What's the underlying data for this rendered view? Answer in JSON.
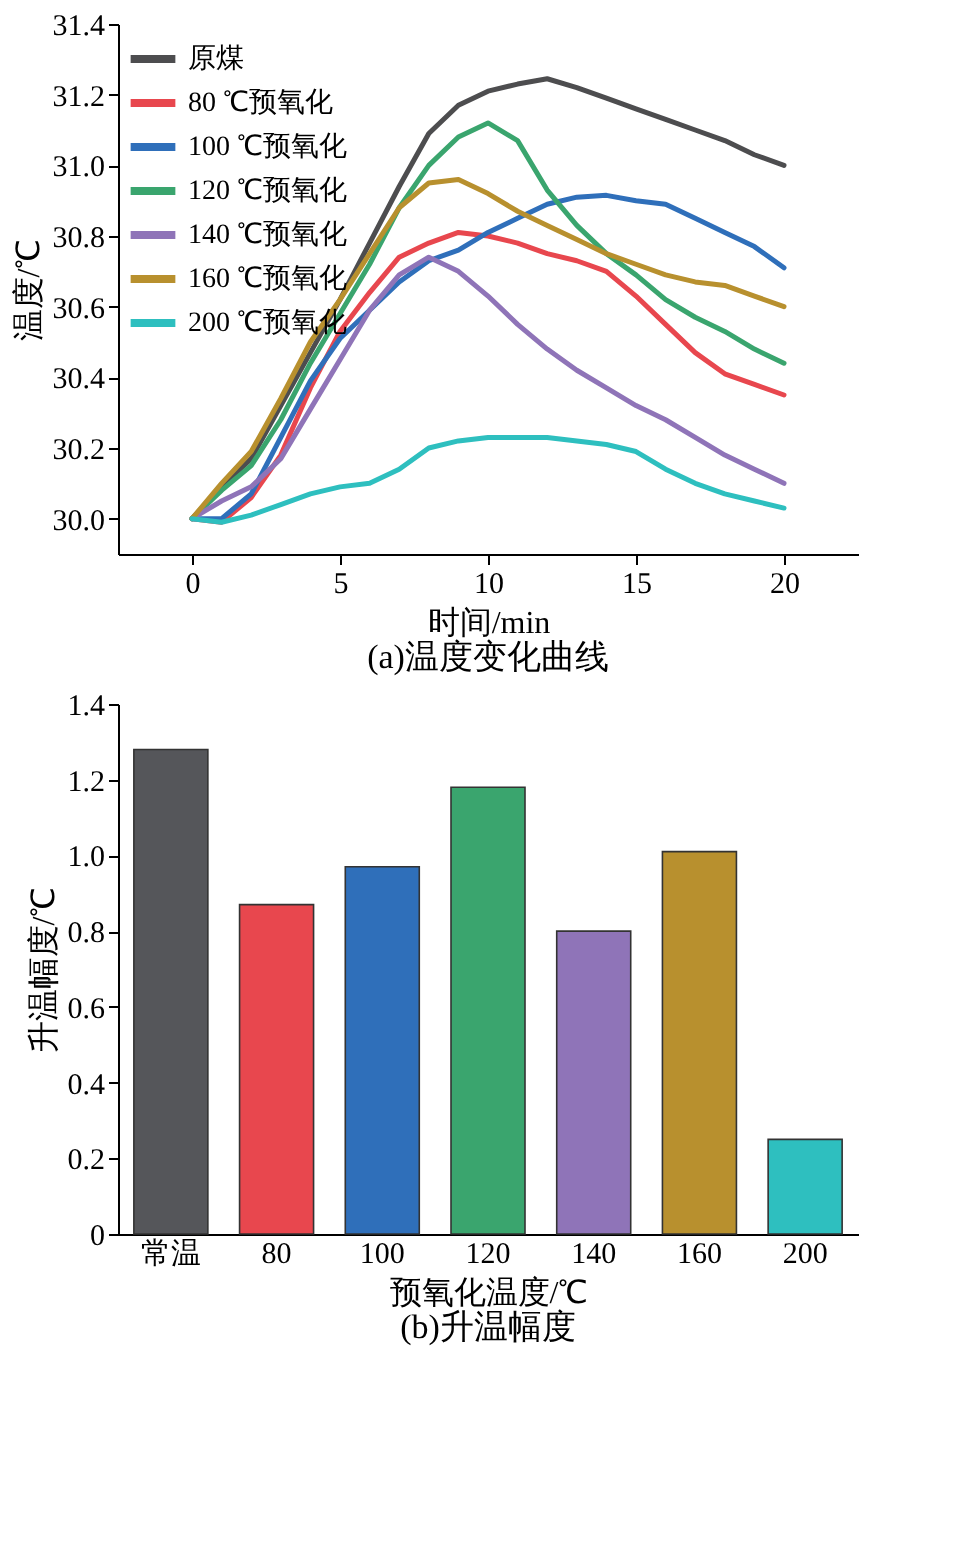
{
  "chart_data": [
    {
      "type": "line",
      "title": "(a)温度变化曲线",
      "xlabel": "时间/min",
      "ylabel": "温度/℃",
      "xlim": [
        -2.5,
        22.5
      ],
      "xticks": [
        0,
        5,
        10,
        15,
        20
      ],
      "ylim": [
        29.9,
        31.4
      ],
      "yticks": [
        {
          "value": 30,
          "label": "30.0"
        },
        30.2,
        30.4,
        30.6,
        30.8,
        {
          "value": 31,
          "label": "31.0"
        },
        31.2,
        31.4
      ],
      "legend": "top left",
      "grid": false,
      "marker": "none",
      "line_style": "solid",
      "x": [
        0,
        1,
        2,
        3,
        4,
        5,
        6,
        7,
        8,
        9,
        10,
        11,
        12,
        13,
        14,
        15,
        16,
        17,
        18,
        19,
        20
      ],
      "series": [
        {
          "name": "原煤",
          "color": "#4d4d4f",
          "values": [
            30.0,
            30.09,
            30.17,
            30.32,
            30.47,
            30.62,
            30.78,
            30.94,
            31.09,
            31.17,
            31.21,
            31.23,
            31.245,
            31.22,
            31.19,
            31.16,
            31.13,
            31.1,
            31.07,
            31.03,
            31.0
          ]
        },
        {
          "name": "80 ℃预氧化",
          "color": "#e8474e",
          "values": [
            30.0,
            29.99,
            30.06,
            30.18,
            30.37,
            30.53,
            30.64,
            30.74,
            30.78,
            30.81,
            30.8,
            30.78,
            30.75,
            30.73,
            30.7,
            30.63,
            30.55,
            30.47,
            30.41,
            30.38,
            30.35
          ]
        },
        {
          "name": "100 ℃预氧化",
          "color": "#2f6fba",
          "values": [
            30.0,
            30.0,
            30.07,
            30.23,
            30.39,
            30.51,
            30.59,
            30.67,
            30.73,
            30.76,
            30.81,
            30.85,
            30.89,
            30.91,
            30.915,
            30.9,
            30.89,
            30.85,
            30.81,
            30.77,
            30.71
          ]
        },
        {
          "name": "120 ℃预氧化",
          "color": "#3aa56e",
          "values": [
            30.0,
            30.08,
            30.15,
            30.28,
            30.44,
            30.58,
            30.72,
            30.88,
            31.0,
            31.08,
            31.12,
            31.07,
            30.93,
            30.83,
            30.75,
            30.69,
            30.62,
            30.57,
            30.53,
            30.48,
            30.44
          ]
        },
        {
          "name": "140 ℃预氧化",
          "color": "#8f74b8",
          "values": [
            30.0,
            30.05,
            30.09,
            30.17,
            30.31,
            30.45,
            30.59,
            30.69,
            30.74,
            30.7,
            30.63,
            30.55,
            30.48,
            30.42,
            30.37,
            30.32,
            30.28,
            30.23,
            30.18,
            30.14,
            30.1
          ]
        },
        {
          "name": "160 ℃预氧化",
          "color": "#b8902e",
          "values": [
            30.0,
            30.1,
            30.19,
            30.34,
            30.5,
            30.62,
            30.75,
            30.88,
            30.95,
            30.96,
            30.92,
            30.87,
            30.83,
            30.79,
            30.75,
            30.72,
            30.69,
            30.67,
            30.66,
            30.63,
            30.6
          ]
        },
        {
          "name": "200 ℃预氧化",
          "color": "#2ebfbf",
          "values": [
            30.0,
            29.99,
            30.01,
            30.04,
            30.07,
            30.09,
            30.1,
            30.14,
            30.2,
            30.22,
            30.23,
            30.23,
            30.23,
            30.22,
            30.21,
            30.19,
            30.14,
            30.1,
            30.07,
            30.05,
            30.03
          ]
        }
      ]
    },
    {
      "type": "bar",
      "title": "(b)升温幅度",
      "xlabel": "预氧化温度/℃",
      "ylabel": "升温幅度/℃",
      "categories": [
        "常温",
        "80",
        "100",
        "120",
        "140",
        "160",
        "200"
      ],
      "values": [
        1.28,
        0.87,
        0.97,
        1.18,
        0.8,
        1.01,
        0.25
      ],
      "colors": [
        "#55565a",
        "#e8474e",
        "#2f6fba",
        "#3aa56e",
        "#8f74b8",
        "#b8902e",
        "#2ebfbf"
      ],
      "ylim": [
        0,
        1.4
      ],
      "yticks": [
        {
          "value": 0,
          "label": "0"
        },
        0.2,
        0.4,
        0.6,
        0.8,
        {
          "value": 1,
          "label": "1.0"
        },
        1.2,
        1.4
      ],
      "grid": false
    }
  ]
}
